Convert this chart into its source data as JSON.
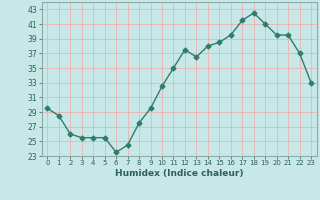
{
  "x": [
    0,
    1,
    2,
    3,
    4,
    5,
    6,
    7,
    8,
    9,
    10,
    11,
    12,
    13,
    14,
    15,
    16,
    17,
    18,
    19,
    20,
    21,
    22,
    23
  ],
  "y": [
    29.5,
    28.5,
    26.0,
    25.5,
    25.5,
    25.5,
    23.5,
    24.5,
    27.5,
    29.5,
    32.5,
    35.0,
    37.5,
    36.5,
    38.0,
    38.5,
    39.5,
    41.5,
    42.5,
    41.0,
    39.5,
    39.5,
    37.0,
    33.0
  ],
  "line_color": "#2e7d6e",
  "marker": "D",
  "marker_size": 2.5,
  "bg_color": "#c8e8e8",
  "grid_color": "#e8b8b8",
  "xlabel": "Humidex (Indice chaleur)",
  "yticks": [
    23,
    25,
    27,
    29,
    31,
    33,
    35,
    37,
    39,
    41,
    43
  ],
  "xticks": [
    0,
    1,
    2,
    3,
    4,
    5,
    6,
    7,
    8,
    9,
    10,
    11,
    12,
    13,
    14,
    15,
    16,
    17,
    18,
    19,
    20,
    21,
    22,
    23
  ],
  "xlim": [
    -0.5,
    23.5
  ],
  "ylim": [
    23,
    44
  ]
}
